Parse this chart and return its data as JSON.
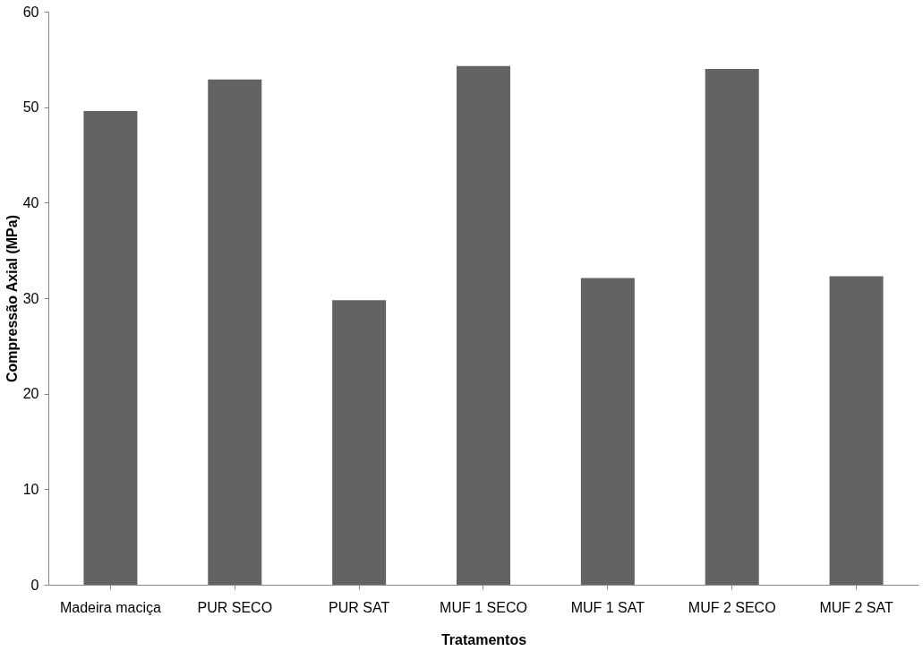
{
  "chart_data": {
    "type": "bar",
    "xlabel": "Tratamentos",
    "ylabel": "Compressão Axial (MPa)",
    "categories": [
      "Madeira maciça",
      "PUR SECO",
      "PUR SAT",
      "MUF 1 SECO",
      "MUF 1 SAT",
      "MUF 2 SECO",
      "MUF 2 SAT"
    ],
    "values": [
      49.6,
      52.9,
      29.8,
      54.3,
      32.1,
      54.0,
      32.3
    ],
    "color": "#636363",
    "ylim": [
      0,
      60
    ],
    "yticks": [
      0,
      10,
      20,
      30,
      40,
      50,
      60
    ],
    "grid": false
  }
}
